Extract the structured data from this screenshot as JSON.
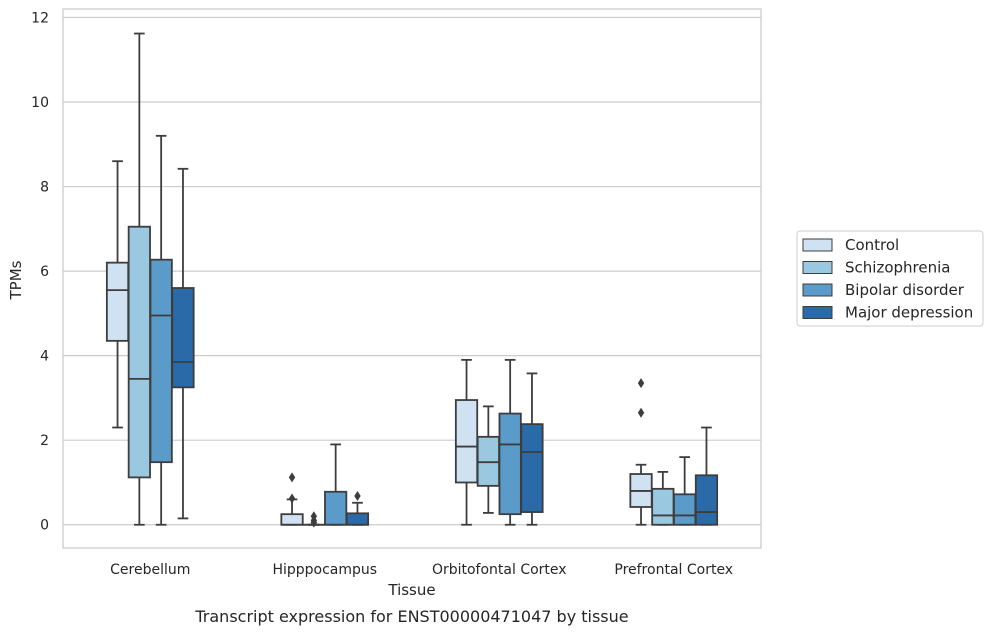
{
  "caption": "Transcript expression for ENST00000471047 by tissue",
  "chart_data": {
    "type": "box",
    "xlabel": "Tissue",
    "ylabel": "TPMs",
    "ylim": [
      -0.55,
      12.2
    ],
    "yticks": [
      0,
      2,
      4,
      6,
      8,
      10,
      12
    ],
    "grid": "horizontal",
    "legend_position": "right",
    "categories": [
      "Cerebellum",
      "Hipppocampus",
      "Orbitofontal Cortex",
      "Prefrontal Cortex"
    ],
    "series": [
      {
        "name": "Control",
        "color": "#d0e1f2",
        "boxes": [
          {
            "whislo": 2.3,
            "q1": 4.35,
            "med": 5.55,
            "q3": 6.2,
            "whishi": 8.6,
            "fliers": []
          },
          {
            "whislo": 0.0,
            "q1": 0.0,
            "med": 0.0,
            "q3": 0.25,
            "whishi": 0.6,
            "fliers": [
              1.12,
              0.62
            ]
          },
          {
            "whislo": 0.0,
            "q1": 1.0,
            "med": 1.85,
            "q3": 2.95,
            "whishi": 3.9,
            "fliers": []
          },
          {
            "whislo": 0.0,
            "q1": 0.42,
            "med": 0.8,
            "q3": 1.2,
            "whishi": 1.42,
            "fliers": [
              3.35,
              2.65
            ]
          }
        ]
      },
      {
        "name": "Schizophrenia",
        "color": "#9ac8e0",
        "boxes": [
          {
            "whislo": 0.0,
            "q1": 1.12,
            "med": 3.45,
            "q3": 7.05,
            "whishi": 11.62,
            "fliers": []
          },
          {
            "whislo": 0.0,
            "q1": 0.0,
            "med": 0.0,
            "q3": 0.0,
            "whishi": 0.0,
            "fliers": [
              0.2,
              0.1,
              0.05
            ]
          },
          {
            "whislo": 0.28,
            "q1": 0.92,
            "med": 1.48,
            "q3": 2.08,
            "whishi": 2.8,
            "fliers": []
          },
          {
            "whislo": 0.0,
            "q1": 0.0,
            "med": 0.22,
            "q3": 0.85,
            "whishi": 1.25,
            "fliers": []
          }
        ]
      },
      {
        "name": "Bipolar disorder",
        "color": "#5a9bc9",
        "boxes": [
          {
            "whislo": 0.0,
            "q1": 1.48,
            "med": 4.95,
            "q3": 6.27,
            "whishi": 9.2,
            "fliers": []
          },
          {
            "whislo": 0.0,
            "q1": 0.0,
            "med": 0.0,
            "q3": 0.78,
            "whishi": 1.9,
            "fliers": []
          },
          {
            "whislo": 0.0,
            "q1": 0.25,
            "med": 1.9,
            "q3": 2.63,
            "whishi": 3.9,
            "fliers": []
          },
          {
            "whislo": 0.0,
            "q1": 0.0,
            "med": 0.22,
            "q3": 0.72,
            "whishi": 1.6,
            "fliers": []
          }
        ]
      },
      {
        "name": "Major depression",
        "color": "#2b6aa8",
        "boxes": [
          {
            "whislo": 0.15,
            "q1": 3.25,
            "med": 3.85,
            "q3": 5.6,
            "whishi": 8.42,
            "fliers": []
          },
          {
            "whislo": 0.0,
            "q1": 0.0,
            "med": 0.0,
            "q3": 0.27,
            "whishi": 0.52,
            "fliers": [
              0.68
            ]
          },
          {
            "whislo": 0.0,
            "q1": 0.3,
            "med": 1.72,
            "q3": 2.38,
            "whishi": 3.58,
            "fliers": []
          },
          {
            "whislo": 0.0,
            "q1": 0.0,
            "med": 0.3,
            "q3": 1.17,
            "whishi": 2.3,
            "fliers": []
          }
        ]
      }
    ]
  }
}
